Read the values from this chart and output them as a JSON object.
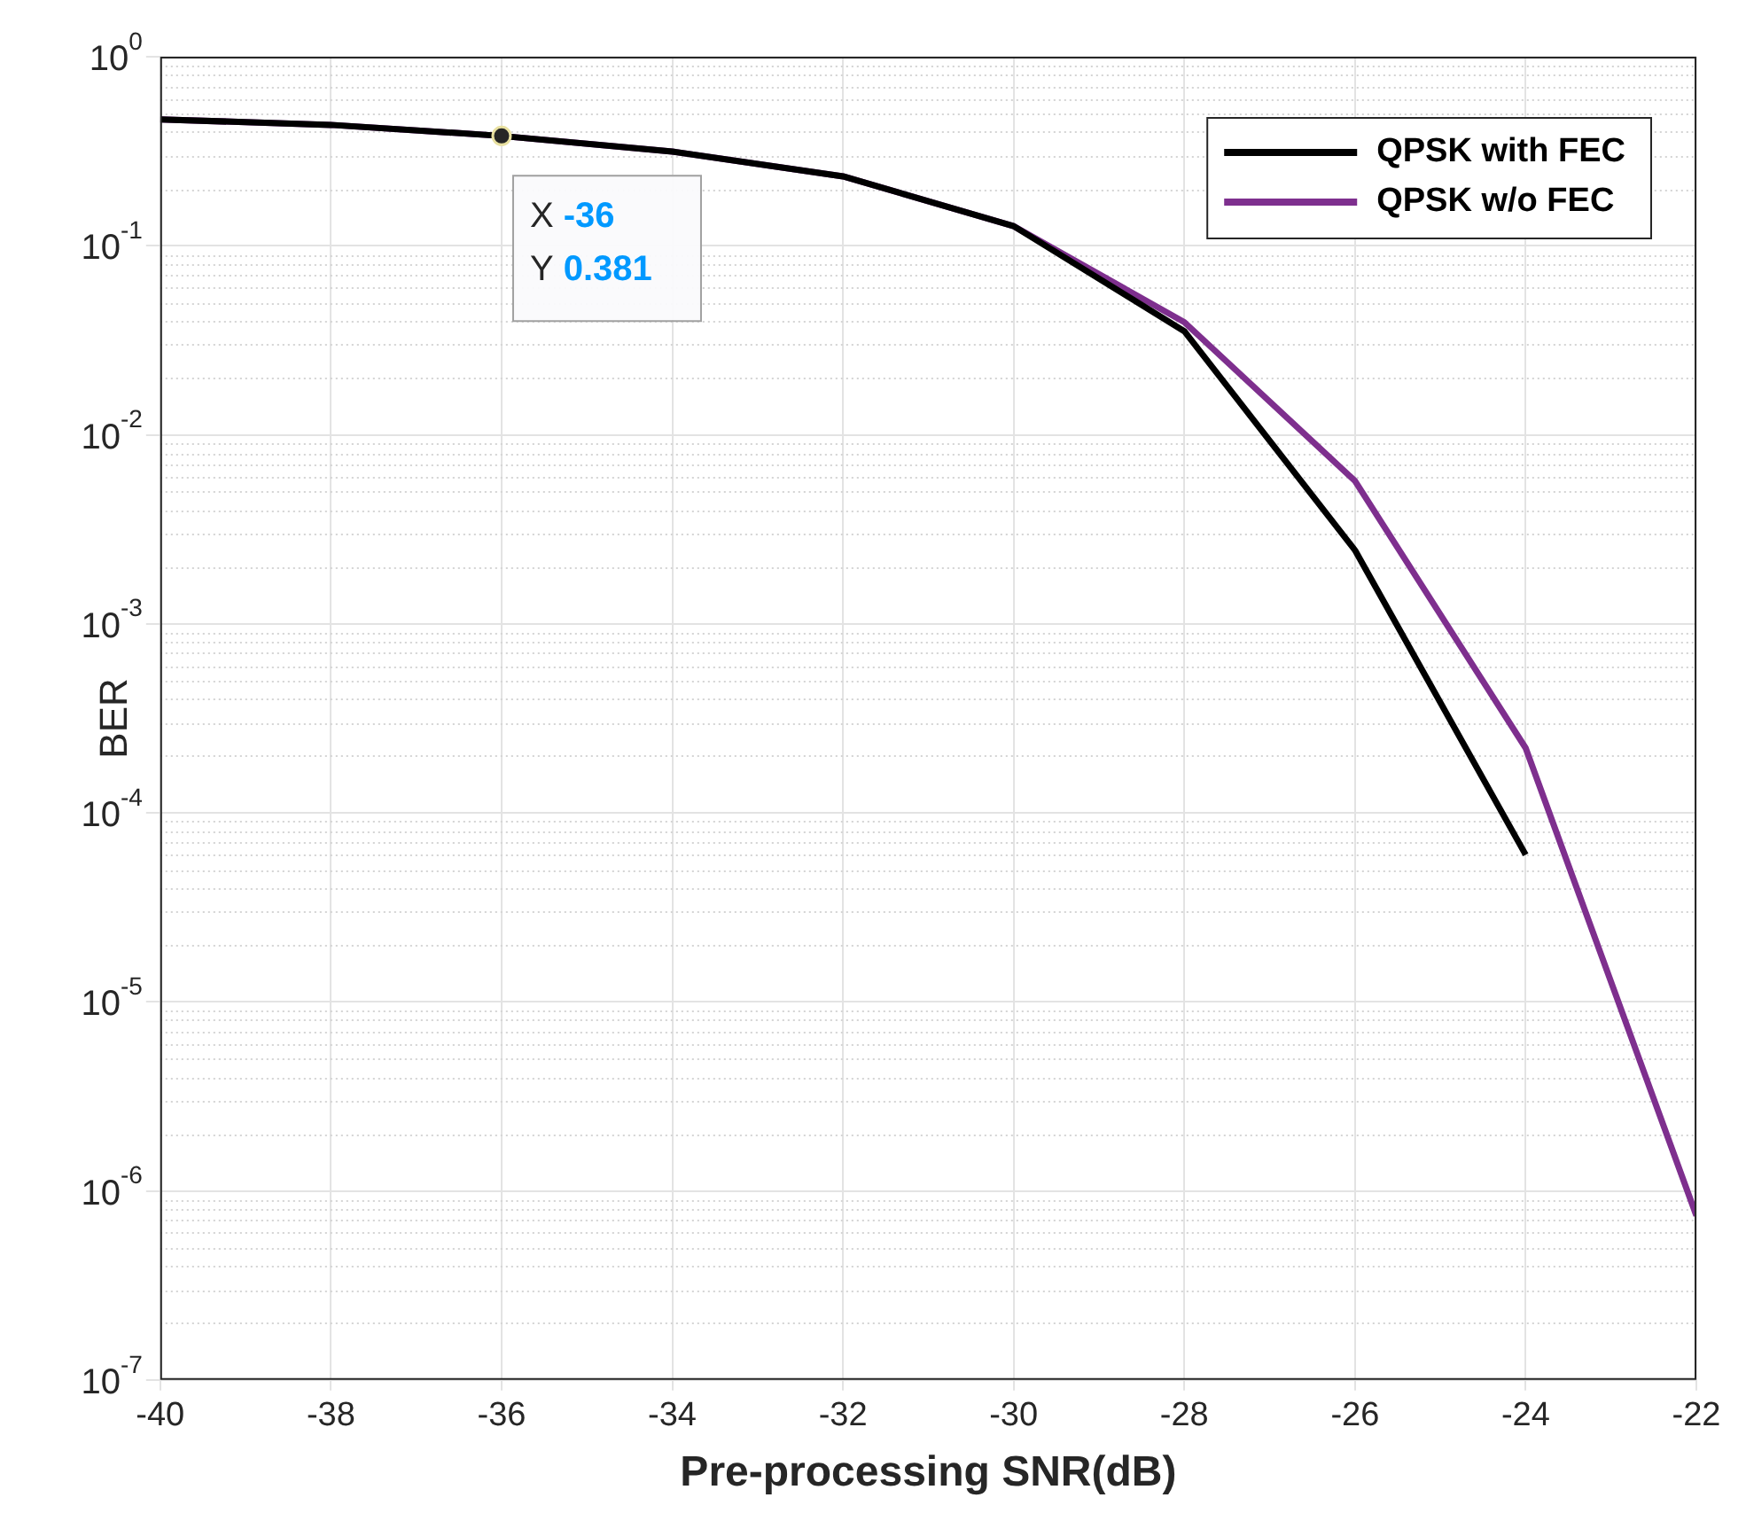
{
  "chart_data": {
    "type": "line",
    "xlabel": "Pre-processing SNR(dB)",
    "ylabel": "BER",
    "x": [
      -40,
      -38,
      -36,
      -34,
      -32,
      -30,
      -28,
      -26,
      -24,
      -22
    ],
    "series": [
      {
        "name": "QPSK with FEC",
        "color": "#000000",
        "values": [
          0.466,
          0.436,
          0.381,
          0.315,
          0.233,
          0.127,
          0.0353,
          0.00245,
          6e-05,
          null
        ]
      },
      {
        "name": "QPSK w/o FEC",
        "color": "#7e2f8e",
        "values": [
          0.466,
          0.436,
          0.381,
          0.315,
          0.233,
          0.127,
          0.0394,
          0.0057,
          0.00022,
          7.4e-07
        ]
      }
    ],
    "xlim": [
      -40,
      -22
    ],
    "xticks": [
      -40,
      -38,
      -36,
      -34,
      -32,
      -30,
      -28,
      -26,
      -24,
      -22
    ],
    "ylim": [
      1e-07,
      1
    ],
    "yticks": [
      {
        "value": 1e-07,
        "label": "10$^{-7}$"
      },
      {
        "value": 1e-06,
        "label": "10$^{-6}$"
      },
      {
        "value": 1e-05,
        "label": "10$^{-5}$"
      },
      {
        "value": 0.0001,
        "label": "10$^{-4}$"
      },
      {
        "value": 0.001,
        "label": "10$^{-3}$"
      },
      {
        "value": 0.01,
        "label": "10$^{-2}$"
      },
      {
        "value": 0.1,
        "label": "10$^{-1}$"
      },
      {
        "value": 1,
        "label": "10$^{0}$"
      }
    ],
    "log": "y",
    "grid": true,
    "legend": "top right",
    "annotations": [
      {
        "text": "X -36\nY 0.381",
        "x": -36,
        "y": 0.381
      }
    ]
  }
}
